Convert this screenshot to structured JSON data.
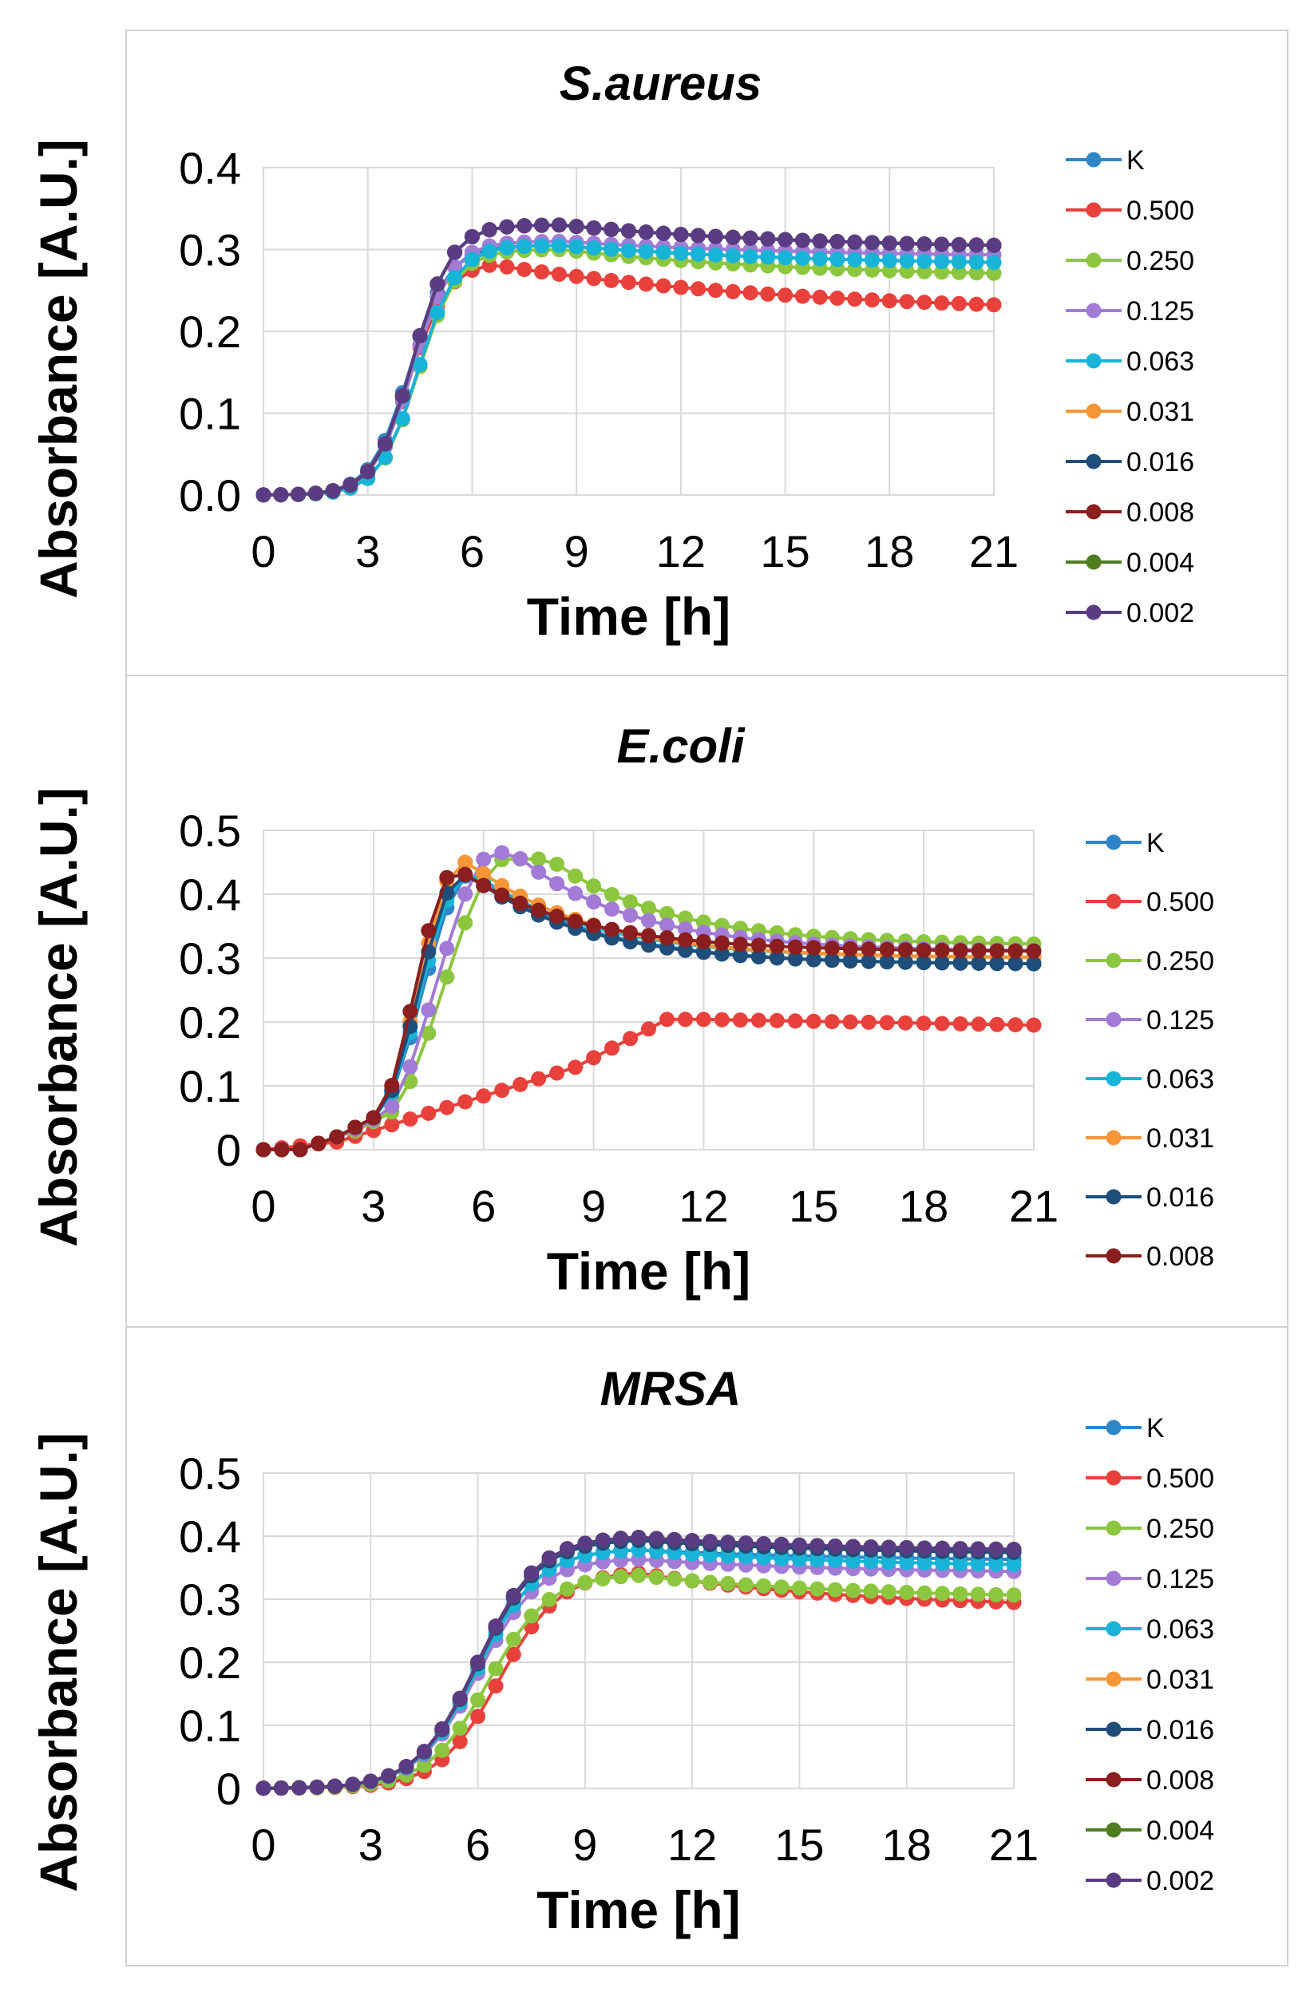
{
  "series_colors": {
    "K": "#2E86C9",
    "0.500": "#E8413C",
    "0.250": "#8CC63F",
    "0.125": "#A17BD6",
    "0.063": "#18B4D8",
    "0.031": "#F79637",
    "0.016": "#1E4E79",
    "0.008": "#8B1E1E",
    "0.004": "#4E7D20",
    "0.002": "#5A3C84"
  },
  "chart_data": [
    {
      "type": "line",
      "title": "S.aureus",
      "xlabel": "Time [h]",
      "ylabel": "Absorbance [A.U.]",
      "xlim": [
        0,
        21
      ],
      "ylim": [
        0,
        0.4
      ],
      "xticks": [
        "0",
        "3",
        "6",
        "9",
        "12",
        "15",
        "18",
        "21"
      ],
      "yticks": [
        "0.0",
        "0.1",
        "0.2",
        "0.3",
        "0.4"
      ],
      "grid": true,
      "legend_position": "right",
      "series": [
        {
          "name": "K",
          "final": 0.28
        },
        {
          "name": "0.500",
          "final": 0.22
        },
        {
          "name": "0.250",
          "final": 0.265
        },
        {
          "name": "0.125",
          "final": 0.29
        },
        {
          "name": "0.063",
          "final": 0.28
        },
        {
          "name": "0.031",
          "final": 0.3
        },
        {
          "name": "0.016",
          "final": 0.3
        },
        {
          "name": "0.008",
          "final": 0.3
        },
        {
          "name": "0.004",
          "final": 0.3
        },
        {
          "name": "0.002",
          "final": 0.3
        }
      ]
    },
    {
      "type": "line",
      "title": "E.coli",
      "xlabel": "Time [h]",
      "ylabel": "Absorbance [A.U.]",
      "xlim": [
        0,
        21
      ],
      "ylim": [
        0,
        0.5
      ],
      "xticks": [
        "0",
        "3",
        "6",
        "9",
        "12",
        "15",
        "18",
        "21"
      ],
      "yticks": [
        "0",
        "0.1",
        "0.2",
        "0.3",
        "0.4",
        "0.5"
      ],
      "grid": true,
      "legend_position": "right",
      "series": [
        {
          "name": "K",
          "final": 0.29
        },
        {
          "name": "0.500",
          "final": 0.195
        },
        {
          "name": "0.250",
          "final": 0.32
        },
        {
          "name": "0.125",
          "final": 0.31
        },
        {
          "name": "0.063",
          "final": 0.3
        },
        {
          "name": "0.031",
          "final": 0.3
        },
        {
          "name": "0.016",
          "final": 0.29
        },
        {
          "name": "0.008",
          "final": 0.31
        }
      ]
    },
    {
      "type": "line",
      "title": "MRSA",
      "xlabel": "Time [h]",
      "ylabel": "Absorbance [A.U.]",
      "xlim": [
        0,
        21
      ],
      "ylim": [
        0,
        0.5
      ],
      "xticks": [
        "0",
        "3",
        "6",
        "9",
        "12",
        "15",
        "18",
        "21"
      ],
      "yticks": [
        "0",
        "0.1",
        "0.2",
        "0.3",
        "0.4",
        "0.5"
      ],
      "grid": true,
      "legend_position": "right",
      "series": [
        {
          "name": "K",
          "final": 0.36
        },
        {
          "name": "0.500",
          "final": 0.285
        },
        {
          "name": "0.250",
          "final": 0.3
        },
        {
          "name": "0.125",
          "final": 0.34
        },
        {
          "name": "0.063",
          "final": 0.35
        },
        {
          "name": "0.031",
          "final": 0.37
        },
        {
          "name": "0.016",
          "final": 0.37
        },
        {
          "name": "0.008",
          "final": 0.375
        },
        {
          "name": "0.004",
          "final": 0.375
        },
        {
          "name": "0.002",
          "final": 0.375
        }
      ]
    }
  ]
}
